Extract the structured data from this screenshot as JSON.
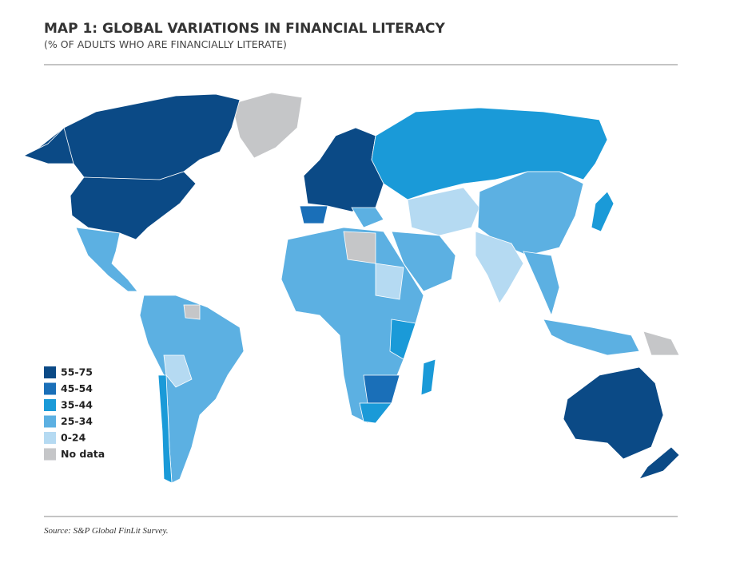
{
  "header": {
    "title": "MAP 1: GLOBAL VARIATIONS IN FINANCIAL LITERACY",
    "subtitle": "(% OF ADULTS WHO ARE FINANCIALLY LITERATE)"
  },
  "legend": {
    "items": [
      {
        "label": "55-75",
        "color": "#0b4a86"
      },
      {
        "label": "45-54",
        "color": "#1a6fb8"
      },
      {
        "label": "35-44",
        "color": "#1a9ad8"
      },
      {
        "label": "25-34",
        "color": "#5cb0e2"
      },
      {
        "label": "0-24",
        "color": "#b5daf2"
      },
      {
        "label": "No data",
        "color": "#c5c6c8"
      }
    ]
  },
  "source": "Source: S&P Global FinLit Survey."
}
